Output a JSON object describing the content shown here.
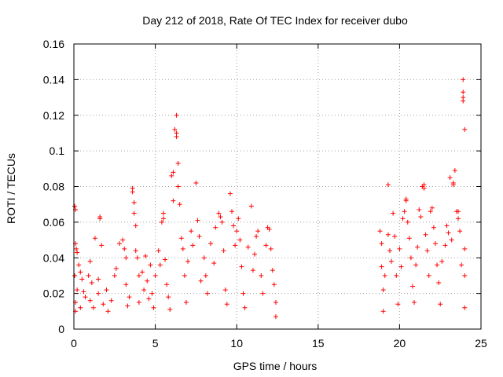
{
  "chart_data": {
    "type": "scatter",
    "title": "Day 212 of 2018, Rate Of TEC Index for receiver dubo",
    "xlabel": "GPS time / hours",
    "ylabel": "ROTI / TECUs",
    "xlim": [
      0,
      25
    ],
    "ylim": [
      0,
      0.16
    ],
    "xticks": [
      "0",
      "5",
      "10",
      "15",
      "20",
      "25"
    ],
    "yticks": [
      "0",
      "0.02",
      "0.04",
      "0.06",
      "0.08",
      "0.1",
      "0.12",
      "0.14",
      "0.16"
    ],
    "grid": true,
    "marker": "+",
    "color": "#ff0000",
    "series": [
      {
        "points": [
          [
            0.05,
            0.069
          ],
          [
            0.1,
            0.067
          ],
          [
            0.1,
            0.048
          ],
          [
            0.15,
            0.045
          ],
          [
            0.2,
            0.043
          ],
          [
            0.05,
            0.03
          ],
          [
            0.1,
            0.015
          ],
          [
            0.1,
            0.01
          ],
          [
            0.2,
            0.022
          ],
          [
            0.3,
            0.036
          ],
          [
            0.4,
            0.032
          ],
          [
            0.5,
            0.028
          ],
          [
            0.6,
            0.021
          ],
          [
            0.4,
            0.012
          ],
          [
            0.7,
            0.018
          ],
          [
            0.9,
            0.03
          ],
          [
            1.0,
            0.038
          ],
          [
            1.0,
            0.016
          ],
          [
            1.1,
            0.026
          ],
          [
            1.2,
            0.012
          ],
          [
            1.3,
            0.051
          ],
          [
            1.5,
            0.028
          ],
          [
            1.5,
            0.02
          ],
          [
            1.6,
            0.063
          ],
          [
            1.6,
            0.062
          ],
          [
            1.7,
            0.047
          ],
          [
            1.8,
            0.014
          ],
          [
            2.0,
            0.022
          ],
          [
            2.1,
            0.01
          ],
          [
            2.3,
            0.016
          ],
          [
            2.5,
            0.03
          ],
          [
            2.6,
            0.034
          ],
          [
            2.8,
            0.048
          ],
          [
            3.0,
            0.05
          ],
          [
            3.1,
            0.045
          ],
          [
            3.2,
            0.04
          ],
          [
            3.2,
            0.025
          ],
          [
            3.3,
            0.013
          ],
          [
            3.4,
            0.018
          ],
          [
            3.6,
            0.079
          ],
          [
            3.6,
            0.077
          ],
          [
            3.7,
            0.071
          ],
          [
            3.7,
            0.065
          ],
          [
            3.8,
            0.058
          ],
          [
            3.8,
            0.044
          ],
          [
            3.9,
            0.04
          ],
          [
            4.0,
            0.03
          ],
          [
            4.0,
            0.015
          ],
          [
            4.2,
            0.032
          ],
          [
            4.3,
            0.022
          ],
          [
            4.4,
            0.041
          ],
          [
            4.5,
            0.027
          ],
          [
            4.6,
            0.017
          ],
          [
            4.7,
            0.036
          ],
          [
            4.8,
            0.02
          ],
          [
            4.9,
            0.012
          ],
          [
            5.0,
            0.03
          ],
          [
            5.2,
            0.044
          ],
          [
            5.3,
            0.036
          ],
          [
            5.4,
            0.06
          ],
          [
            5.5,
            0.065
          ],
          [
            5.5,
            0.062
          ],
          [
            5.6,
            0.039
          ],
          [
            5.7,
            0.025
          ],
          [
            5.8,
            0.018
          ],
          [
            5.9,
            0.011
          ],
          [
            6.0,
            0.086
          ],
          [
            6.1,
            0.088
          ],
          [
            6.1,
            0.072
          ],
          [
            6.2,
            0.112
          ],
          [
            6.3,
            0.12
          ],
          [
            6.3,
            0.108
          ],
          [
            6.3,
            0.11
          ],
          [
            6.4,
            0.093
          ],
          [
            6.4,
            0.08
          ],
          [
            6.5,
            0.07
          ],
          [
            6.6,
            0.051
          ],
          [
            6.7,
            0.045
          ],
          [
            6.8,
            0.03
          ],
          [
            6.9,
            0.015
          ],
          [
            7.0,
            0.038
          ],
          [
            7.2,
            0.055
          ],
          [
            7.3,
            0.047
          ],
          [
            7.5,
            0.082
          ],
          [
            7.6,
            0.061
          ],
          [
            7.7,
            0.052
          ],
          [
            7.8,
            0.027
          ],
          [
            8.0,
            0.04
          ],
          [
            8.1,
            0.03
          ],
          [
            8.2,
            0.02
          ],
          [
            8.4,
            0.048
          ],
          [
            8.6,
            0.037
          ],
          [
            8.7,
            0.057
          ],
          [
            8.9,
            0.065
          ],
          [
            9.0,
            0.063
          ],
          [
            9.1,
            0.06
          ],
          [
            9.2,
            0.044
          ],
          [
            9.3,
            0.022
          ],
          [
            9.4,
            0.014
          ],
          [
            9.6,
            0.076
          ],
          [
            9.7,
            0.066
          ],
          [
            9.8,
            0.058
          ],
          [
            9.9,
            0.047
          ],
          [
            10.0,
            0.055
          ],
          [
            10.1,
            0.062
          ],
          [
            10.2,
            0.05
          ],
          [
            10.3,
            0.035
          ],
          [
            10.4,
            0.02
          ],
          [
            10.5,
            0.012
          ],
          [
            10.7,
            0.046
          ],
          [
            10.9,
            0.069
          ],
          [
            11.0,
            0.033
          ],
          [
            11.1,
            0.042
          ],
          [
            11.2,
            0.052
          ],
          [
            11.3,
            0.055
          ],
          [
            11.5,
            0.03
          ],
          [
            11.6,
            0.02
          ],
          [
            11.8,
            0.047
          ],
          [
            11.9,
            0.057
          ],
          [
            12.0,
            0.056
          ],
          [
            12.1,
            0.045
          ],
          [
            12.2,
            0.033
          ],
          [
            12.3,
            0.025
          ],
          [
            12.4,
            0.015
          ],
          [
            12.4,
            0.007
          ],
          [
            18.8,
            0.055
          ],
          [
            18.9,
            0.048
          ],
          [
            18.9,
            0.035
          ],
          [
            19.0,
            0.022
          ],
          [
            19.0,
            0.01
          ],
          [
            19.1,
            0.03
          ],
          [
            19.3,
            0.081
          ],
          [
            19.3,
            0.053
          ],
          [
            19.4,
            0.044
          ],
          [
            19.5,
            0.038
          ],
          [
            19.6,
            0.065
          ],
          [
            19.7,
            0.052
          ],
          [
            19.8,
            0.03
          ],
          [
            19.9,
            0.014
          ],
          [
            20.0,
            0.045
          ],
          [
            20.1,
            0.035
          ],
          [
            20.2,
            0.062
          ],
          [
            20.3,
            0.066
          ],
          [
            20.4,
            0.073
          ],
          [
            20.4,
            0.072
          ],
          [
            20.5,
            0.06
          ],
          [
            20.6,
            0.051
          ],
          [
            20.7,
            0.04
          ],
          [
            20.8,
            0.024
          ],
          [
            20.9,
            0.015
          ],
          [
            21.0,
            0.036
          ],
          [
            21.1,
            0.046
          ],
          [
            21.2,
            0.067
          ],
          [
            21.3,
            0.063
          ],
          [
            21.4,
            0.08
          ],
          [
            21.5,
            0.081
          ],
          [
            21.5,
            0.079
          ],
          [
            21.6,
            0.053
          ],
          [
            21.7,
            0.044
          ],
          [
            21.8,
            0.03
          ],
          [
            21.9,
            0.066
          ],
          [
            22.0,
            0.068
          ],
          [
            22.1,
            0.057
          ],
          [
            22.2,
            0.048
          ],
          [
            22.3,
            0.036
          ],
          [
            22.4,
            0.026
          ],
          [
            22.5,
            0.014
          ],
          [
            22.6,
            0.038
          ],
          [
            22.8,
            0.047
          ],
          [
            22.9,
            0.058
          ],
          [
            23.0,
            0.054
          ],
          [
            23.1,
            0.085
          ],
          [
            23.2,
            0.05
          ],
          [
            23.3,
            0.082
          ],
          [
            23.3,
            0.081
          ],
          [
            23.4,
            0.089
          ],
          [
            23.5,
            0.066
          ],
          [
            23.6,
            0.066
          ],
          [
            23.6,
            0.062
          ],
          [
            23.7,
            0.055
          ],
          [
            23.8,
            0.036
          ],
          [
            23.9,
            0.133
          ],
          [
            23.9,
            0.13
          ],
          [
            23.9,
            0.128
          ],
          [
            23.9,
            0.14
          ],
          [
            24.0,
            0.112
          ],
          [
            24.0,
            0.045
          ],
          [
            24.0,
            0.03
          ],
          [
            24.0,
            0.012
          ]
        ]
      }
    ]
  }
}
